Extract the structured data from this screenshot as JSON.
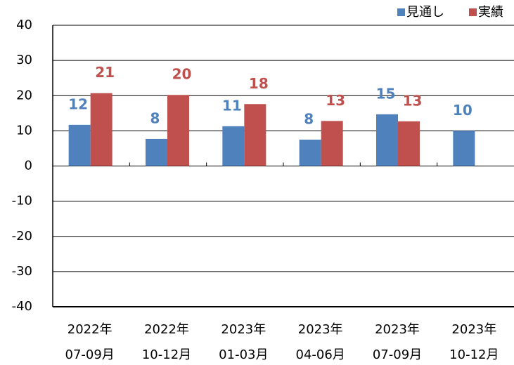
{
  "chart_data": {
    "type": "bar",
    "categories": [
      [
        "2022年",
        "07-09月"
      ],
      [
        "2022年",
        "10-12月"
      ],
      [
        "2023年",
        "01-03月"
      ],
      [
        "2023年",
        "04-06月"
      ],
      [
        "2023年",
        "07-09月"
      ],
      [
        "2023年",
        "10-12月"
      ]
    ],
    "series": [
      {
        "name": "見通し",
        "color": "#4f81bd",
        "values": [
          11.7,
          7.7,
          11.3,
          7.5,
          14.7,
          10.0
        ],
        "value_labels": [
          "12",
          "8",
          "11",
          "8",
          "15",
          "10"
        ]
      },
      {
        "name": "実績",
        "color": "#c0504d",
        "values": [
          20.7,
          20.2,
          17.6,
          12.8,
          12.7,
          null
        ],
        "value_labels": [
          "21",
          "20",
          "18",
          "13",
          "13",
          null
        ]
      }
    ],
    "ylim": [
      -40,
      40
    ],
    "yticks": [
      -40,
      -30,
      -20,
      -10,
      0,
      10,
      20,
      30,
      40
    ],
    "grid": true,
    "legend": "top-right"
  }
}
